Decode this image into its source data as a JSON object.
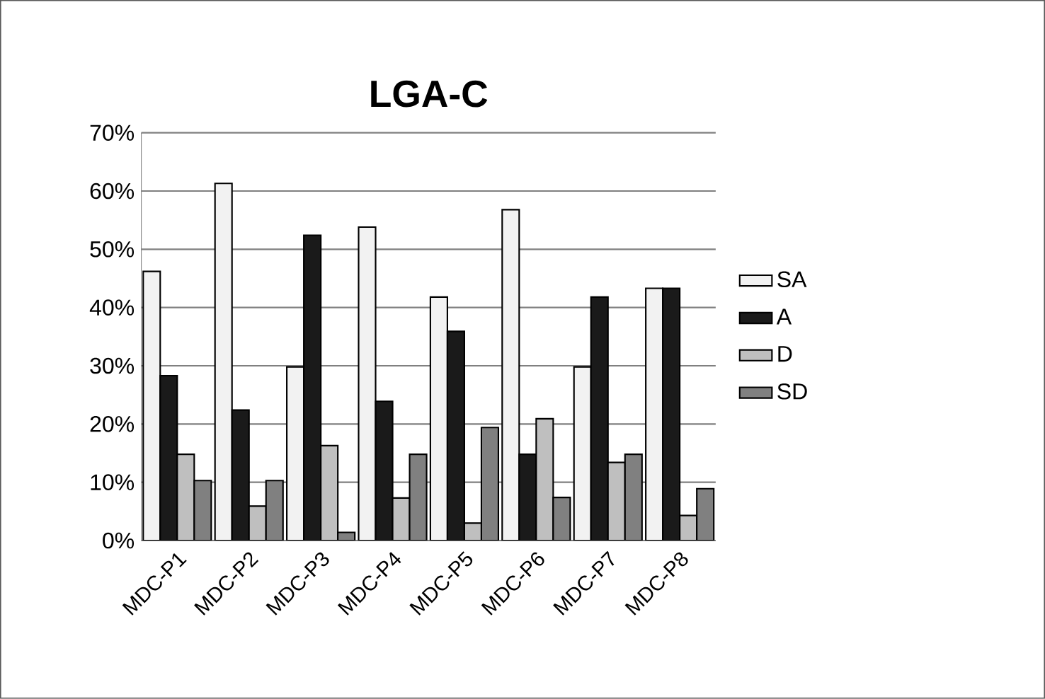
{
  "chart_data": {
    "type": "bar",
    "title": "LGA-C",
    "categories": [
      "MDC-P1",
      "MDC-P2",
      "MDC-P3",
      "MDC-P4",
      "MDC-P5",
      "MDC-P6",
      "MDC-P7",
      "MDC-P8"
    ],
    "series": [
      {
        "name": "SA",
        "color": "#f2f2f2",
        "values": [
          46.2,
          61.3,
          29.8,
          53.8,
          41.8,
          56.8,
          29.8,
          43.3
        ]
      },
      {
        "name": "A",
        "color": "#1a1a1a",
        "values": [
          28.3,
          22.4,
          52.4,
          23.9,
          35.9,
          14.8,
          41.8,
          43.3
        ]
      },
      {
        "name": "D",
        "color": "#bfbfbf",
        "values": [
          14.8,
          5.9,
          16.3,
          7.3,
          3.0,
          20.9,
          13.4,
          4.3
        ]
      },
      {
        "name": "SD",
        "color": "#808080",
        "values": [
          10.3,
          10.3,
          1.4,
          14.8,
          19.4,
          7.4,
          14.8,
          8.9
        ]
      }
    ],
    "ylim": [
      0,
      70
    ],
    "yticks": [
      {
        "value": 0,
        "label": "0%"
      },
      {
        "value": 10,
        "label": "10%"
      },
      {
        "value": 20,
        "label": "20%"
      },
      {
        "value": 30,
        "label": "30%"
      },
      {
        "value": 40,
        "label": "40%"
      },
      {
        "value": 50,
        "label": "50%"
      },
      {
        "value": 60,
        "label": "60%"
      },
      {
        "value": 70,
        "label": "70%"
      }
    ],
    "grid": "y",
    "legend": "right"
  }
}
